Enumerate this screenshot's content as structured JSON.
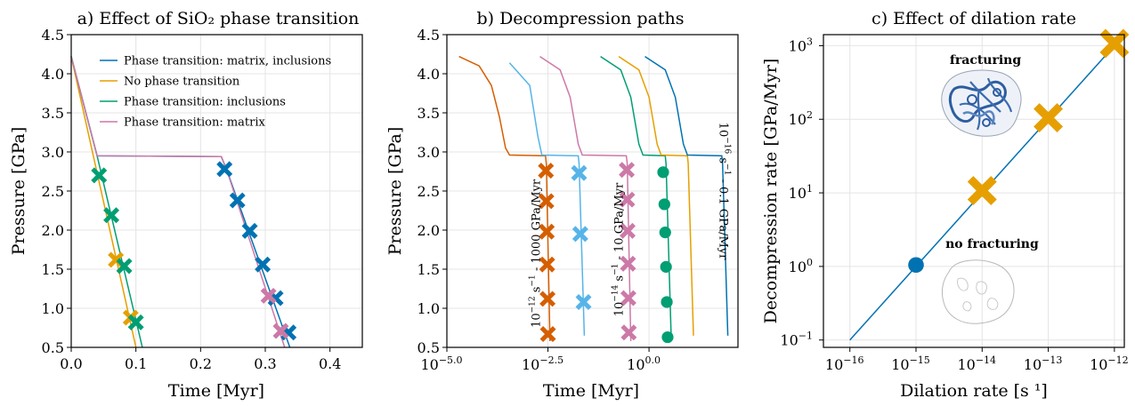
{
  "colors": {
    "blue": "#0072b2",
    "orange": "#e69f00",
    "green": "#009e73",
    "pink": "#cc79a7",
    "vermillion": "#d55e00",
    "skyblue": "#56b4e9"
  },
  "chart_data": [
    {
      "type": "line",
      "title": "a) Effect of SiO₂ phase transition",
      "xlabel": "Time [Myr]",
      "ylabel": "Pressure [GPa]",
      "xlim": [
        0,
        0.45
      ],
      "ylim": [
        0.5,
        4.5
      ],
      "grid": true,
      "legend_position": "top-right",
      "xticks": [
        0.0,
        0.1,
        0.2,
        0.3,
        0.4
      ],
      "xtick_labels": [
        "0.0",
        "0.1",
        "0.2",
        "0.3",
        "0.4"
      ],
      "yticks": [
        0.5,
        1.0,
        1.5,
        2.0,
        2.5,
        3.0,
        3.5,
        4.0,
        4.5
      ],
      "ytick_labels": [
        "0.5",
        "1.0",
        "1.5",
        "2.0",
        "2.5",
        "3.0",
        "3.5",
        "4.0",
        "4.5"
      ],
      "series": [
        {
          "name": "Phase transition: matrix, inclusions",
          "color": "blue",
          "line": [
            [
              0,
              4.22
            ],
            [
              0.04,
              2.95
            ],
            [
              0.232,
              2.94
            ],
            [
              0.24,
              2.78
            ],
            [
              0.338,
              0.5
            ]
          ],
          "markers": [
            [
              0.237,
              2.78
            ],
            [
              0.257,
              2.38
            ],
            [
              0.276,
              1.99
            ],
            [
              0.296,
              1.56
            ],
            [
              0.316,
              1.13
            ],
            [
              0.336,
              0.69
            ]
          ],
          "marker": "x"
        },
        {
          "name": "No phase transition",
          "color": "orange",
          "line": [
            [
              0,
              4.22
            ],
            [
              0.1,
              0.5
            ]
          ],
          "markers": [
            [
              0.069,
              1.62
            ],
            [
              0.092,
              0.88
            ]
          ],
          "marker": "x"
        },
        {
          "name": "Phase transition: inclusions",
          "color": "green",
          "line": [
            [
              0,
              4.22
            ],
            [
              0.04,
              2.95
            ],
            [
              0.11,
              0.5
            ]
          ],
          "markers": [
            [
              0.043,
              2.7
            ],
            [
              0.062,
              2.19
            ],
            [
              0.082,
              1.54
            ],
            [
              0.1,
              0.82
            ]
          ],
          "marker": "x"
        },
        {
          "name": "Phase transition: matrix",
          "color": "pink",
          "line": [
            [
              0,
              4.22
            ],
            [
              0.04,
              2.95
            ],
            [
              0.232,
              2.94
            ],
            [
              0.24,
              2.78
            ],
            [
              0.33,
              0.5
            ]
          ],
          "markers": [
            [
              0.305,
              1.16
            ],
            [
              0.324,
              0.71
            ]
          ],
          "marker": "x"
        }
      ]
    },
    {
      "type": "line",
      "title": "b) Decompression paths",
      "xlabel": "Time [Myr]",
      "ylabel": "Pressure [GPa]",
      "xscale": "log10",
      "xlim": [
        -5,
        2.2
      ],
      "ylim": [
        0.5,
        4.5
      ],
      "grid": true,
      "xticks": [
        -5.0,
        -2.5,
        0.0
      ],
      "xtick_labels": [
        "10",
        "10",
        "10"
      ],
      "xtick_exponents": [
        "−5.0",
        "−2.5",
        "0.0"
      ],
      "yticks": [
        0.5,
        1.0,
        1.5,
        2.0,
        2.5,
        3.0,
        3.5,
        4.0,
        4.5
      ],
      "ytick_labels": [
        "0.5",
        "1.0",
        "1.5",
        "2.0",
        "2.5",
        "3.0",
        "3.5",
        "4.0",
        "4.5"
      ],
      "annotations": [
        {
          "base": "10",
          "exp": "−12",
          "rest": " s",
          "exp2": "−1",
          "tail": " - 1000 GPa/Myr",
          "x": -2.7,
          "y": 1.7
        },
        {
          "base": "10",
          "exp": "−14",
          "rest": " s",
          "exp2": "−1",
          "tail": " - 10 GPa/Myr",
          "x": -0.65,
          "y": 1.75
        },
        {
          "base": "10",
          "exp": "−16",
          "rest": " s",
          "exp2": "−1",
          "tail": " - 0.1 GPa/Myr",
          "x": 1.75,
          "y": 2.5
        }
      ],
      "series": [
        {
          "color": "vermillion",
          "line": [
            [
              -4.7,
              4.22
            ],
            [
              -4.2,
              4.1
            ],
            [
              -3.9,
              3.85
            ],
            [
              -3.7,
              3.45
            ],
            [
              -3.55,
              3.05
            ],
            [
              -3.45,
              2.96
            ],
            [
              -2.56,
              2.95
            ],
            [
              -2.54,
              2.85
            ],
            [
              -2.45,
              0.58
            ]
          ],
          "markers": [
            [
              -2.55,
              2.76
            ],
            [
              -2.54,
              2.37
            ],
            [
              -2.53,
              1.98
            ],
            [
              -2.52,
              1.56
            ],
            [
              -2.51,
              1.12
            ],
            [
              -2.5,
              0.67
            ]
          ],
          "marker": "x"
        },
        {
          "color": "skyblue",
          "line": [
            [
              -3.45,
              4.14
            ],
            [
              -2.95,
              3.85
            ],
            [
              -2.75,
              3.2
            ],
            [
              -2.65,
              2.96
            ],
            [
              -1.75,
              2.95
            ],
            [
              -1.73,
              2.85
            ],
            [
              -1.6,
              0.65
            ]
          ],
          "markers": [
            [
              -1.73,
              2.73
            ],
            [
              -1.7,
              1.95
            ],
            [
              -1.62,
              1.08
            ]
          ],
          "marker": "x"
        },
        {
          "color": "pink",
          "line": [
            [
              -2.7,
              4.22
            ],
            [
              -2.2,
              4.05
            ],
            [
              -1.95,
              3.7
            ],
            [
              -1.75,
              3.1
            ],
            [
              -1.65,
              2.96
            ],
            [
              -0.56,
              2.95
            ],
            [
              -0.54,
              2.85
            ],
            [
              -0.45,
              0.58
            ]
          ],
          "markers": [
            [
              -0.55,
              2.77
            ],
            [
              -0.54,
              2.39
            ],
            [
              -0.53,
              1.99
            ],
            [
              -0.52,
              1.57
            ],
            [
              -0.51,
              1.13
            ],
            [
              -0.5,
              0.69
            ]
          ],
          "marker": "x"
        },
        {
          "color": "green",
          "line": [
            [
              -1.2,
              4.22
            ],
            [
              -0.7,
              4.05
            ],
            [
              -0.45,
              3.7
            ],
            [
              -0.25,
              3.1
            ],
            [
              -0.15,
              2.96
            ],
            [
              0.4,
              2.95
            ],
            [
              0.42,
              2.85
            ],
            [
              0.55,
              0.58
            ]
          ],
          "markers": [
            [
              0.35,
              2.74
            ],
            [
              0.38,
              2.33
            ],
            [
              0.4,
              1.97
            ],
            [
              0.42,
              1.53
            ],
            [
              0.44,
              1.08
            ],
            [
              0.46,
              0.63
            ]
          ],
          "marker": "o"
        },
        {
          "color": "orange",
          "line": [
            [
              -0.75,
              4.22
            ],
            [
              -0.25,
              4.05
            ],
            [
              0.0,
              3.7
            ],
            [
              0.2,
              3.1
            ],
            [
              0.3,
              2.96
            ],
            [
              0.95,
              2.95
            ],
            [
              0.97,
              2.85
            ],
            [
              1.1,
              0.65
            ]
          ]
        },
        {
          "color": "blue",
          "line": [
            [
              -0.1,
              4.22
            ],
            [
              0.4,
              4.05
            ],
            [
              0.65,
              3.7
            ],
            [
              0.85,
              3.1
            ],
            [
              0.95,
              2.96
            ],
            [
              1.8,
              2.95
            ],
            [
              1.82,
              2.85
            ],
            [
              1.95,
              0.65
            ]
          ]
        }
      ]
    },
    {
      "type": "scatter",
      "title": "c) Effect of dilation rate",
      "xlabel": "Dilation rate [s ¹]",
      "ylabel": "Decompression rate [GPa/Myr]",
      "xscale": "log10",
      "yscale": "log10",
      "xlim": [
        -16.4,
        -11.85
      ],
      "ylim": [
        -1.1,
        3.15
      ],
      "grid": true,
      "xticks": [
        -16,
        -15,
        -14,
        -13,
        -12
      ],
      "xtick_labels": [
        "10",
        "10",
        "10",
        "10",
        "10"
      ],
      "xtick_exponents": [
        "−16",
        "−15",
        "−14",
        "−13",
        "−12"
      ],
      "yticks": [
        -1,
        0,
        1,
        2,
        3
      ],
      "ytick_labels": [
        "10",
        "10",
        "10",
        "10",
        "10"
      ],
      "ytick_exponents": [
        "−1",
        "0",
        "1",
        "2",
        "3"
      ],
      "fit_line": {
        "color": "blue",
        "points": [
          [
            -16,
            -1
          ],
          [
            -12,
            3
          ]
        ]
      },
      "points": [
        {
          "x": -15,
          "y": 0.02,
          "marker": "o",
          "color": "blue"
        },
        {
          "x": -14,
          "y": 1.03,
          "marker": "x",
          "color": "orange"
        },
        {
          "x": -13,
          "y": 2.02,
          "marker": "x",
          "color": "orange"
        },
        {
          "x": -12,
          "y": 3.03,
          "marker": "x",
          "color": "orange"
        }
      ],
      "annotations": [
        {
          "text": "fracturing",
          "x": -13.95,
          "y": 2.75
        },
        {
          "text": "no fracturing",
          "x": -13.85,
          "y": 0.25
        }
      ]
    }
  ]
}
